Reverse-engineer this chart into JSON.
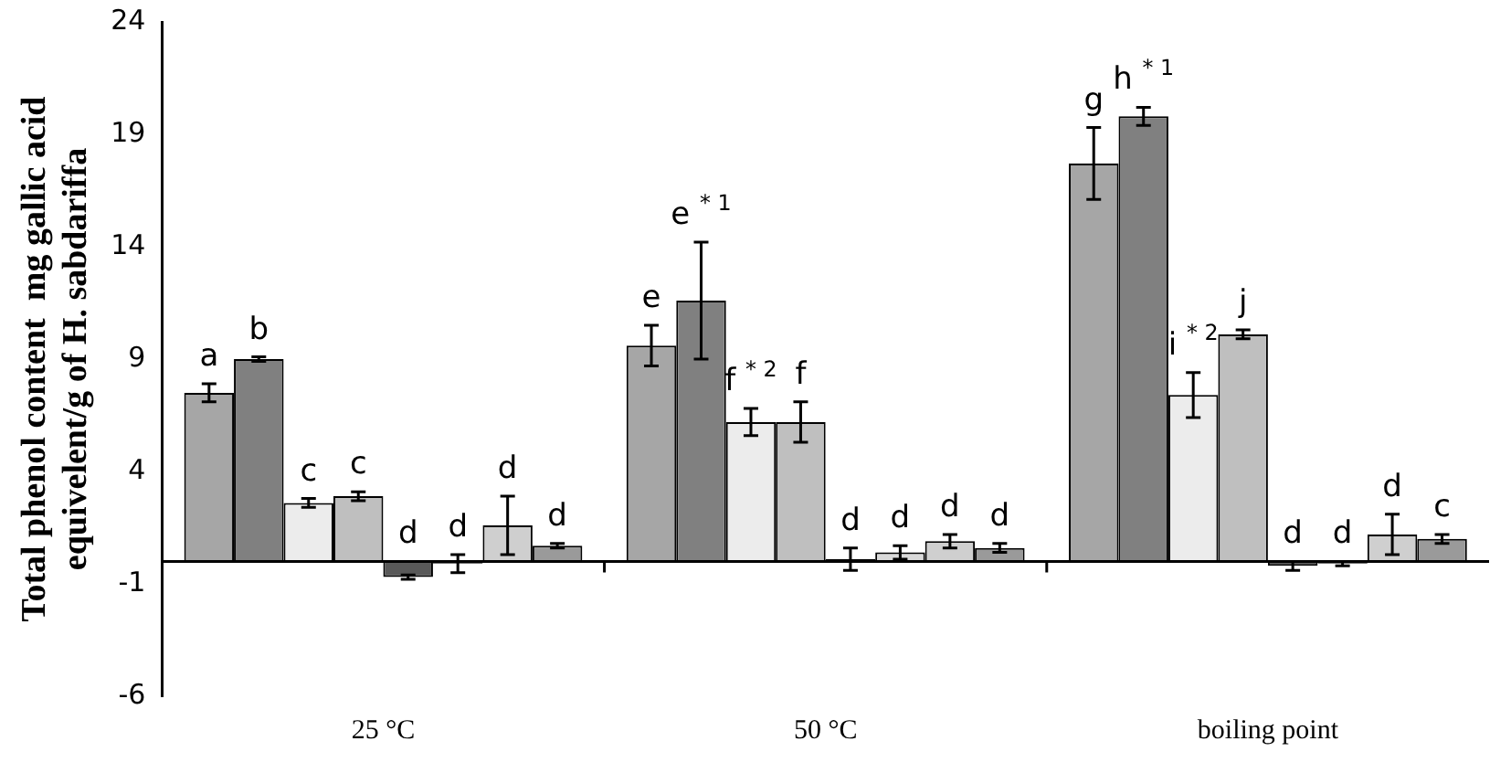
{
  "chart_data": {
    "type": "bar",
    "ylabel": "Total phenol content  mg gallic acid equivelent/g of H. sabdariffa",
    "categories": [
      "25 °C",
      "50 °C",
      "boiling point"
    ],
    "series": [
      {
        "color": "#a6a6a6",
        "values": [
          7.5,
          9.6,
          17.7
        ],
        "errors": [
          0.4,
          0.9,
          1.6
        ]
      },
      {
        "color": "#808080",
        "values": [
          9.0,
          11.6,
          19.8
        ],
        "errors": [
          0.1,
          2.6,
          0.4
        ]
      },
      {
        "color": "#ececec",
        "values": [
          2.6,
          6.2,
          7.4
        ],
        "errors": [
          0.2,
          0.6,
          1.0
        ]
      },
      {
        "color": "#bfbfbf",
        "values": [
          2.9,
          6.2,
          10.1
        ],
        "errors": [
          0.2,
          0.9,
          0.2
        ]
      },
      {
        "color": "#595959",
        "values": [
          -0.7,
          0.1,
          -0.2
        ],
        "errors": [
          0.1,
          0.5,
          0.2
        ]
      },
      {
        "color": "#d9d9d9",
        "values": [
          -0.1,
          0.4,
          -0.1
        ],
        "errors": [
          0.4,
          0.3,
          0.1
        ]
      },
      {
        "color": "#cfcfcf",
        "values": [
          1.6,
          0.9,
          1.2
        ],
        "errors": [
          1.3,
          0.3,
          0.9
        ]
      },
      {
        "color": "#9a9a9a",
        "values": [
          0.7,
          0.6,
          1.0
        ],
        "errors": [
          0.1,
          0.2,
          0.2
        ]
      }
    ],
    "annotations": [
      "a",
      "b",
      "c",
      "c",
      "d",
      "d",
      "d",
      "d",
      "e",
      "e $^{* 1}$",
      "f $^{* 2}$",
      "f",
      "d",
      "d",
      "d",
      "d",
      "g",
      "h $^{* 1}$",
      "i $^{* 2}$",
      "j",
      "d",
      "d",
      "d",
      "c"
    ],
    "ylim": [
      -6,
      24
    ],
    "yticks": [
      -6,
      -1,
      4,
      9,
      14,
      19,
      24
    ],
    "grid": false,
    "legend": false
  }
}
